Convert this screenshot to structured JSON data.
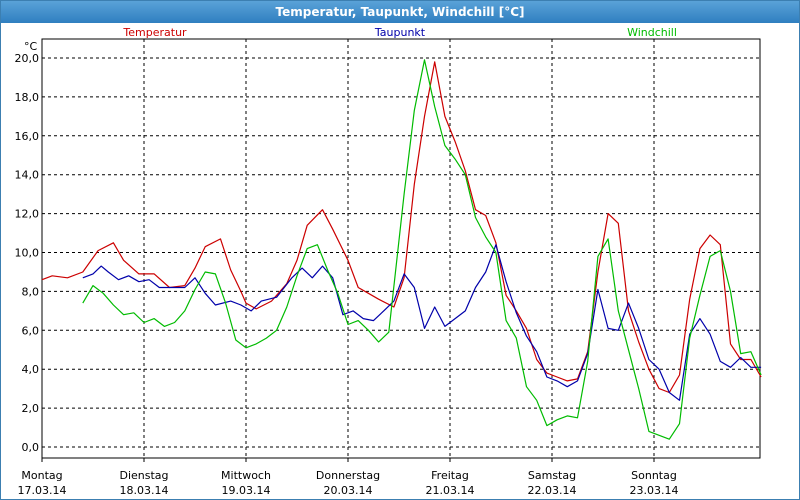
{
  "window": {
    "title": "Temperatur, Taupunkt, Windchill [°C]"
  },
  "chart_data": {
    "type": "line",
    "title": "Temperatur, Taupunkt, Windchill [°C]",
    "unit_label": "°C",
    "ylim": [
      0,
      20
    ],
    "y_ticks": [
      "0,0",
      "2,0",
      "4,0",
      "6,0",
      "8,0",
      "10,0",
      "12,0",
      "14,0",
      "16,0",
      "18,0",
      "20,0"
    ],
    "xlim": [
      0,
      7.1
    ],
    "x_ticks": [
      {
        "day": "Montag",
        "date": "17.03.14"
      },
      {
        "day": "Dienstag",
        "date": "18.03.14"
      },
      {
        "day": "Mittwoch",
        "date": "19.03.14"
      },
      {
        "day": "Donnerstag",
        "date": "20.03.14"
      },
      {
        "day": "Freitag",
        "date": "21.03.14"
      },
      {
        "day": "Samstag",
        "date": "22.03.14"
      },
      {
        "day": "Sonntag",
        "date": "23.03.14"
      }
    ],
    "grid": true,
    "legend_position": "top",
    "series": [
      {
        "name": "Temperatur",
        "color": "#cc0000",
        "x": [
          0,
          0.1,
          0.25,
          0.4,
          0.55,
          0.7,
          0.8,
          0.95,
          1.1,
          1.25,
          1.4,
          1.5,
          1.6,
          1.75,
          1.85,
          1.95,
          2.0,
          2.1,
          2.25,
          2.4,
          2.5,
          2.6,
          2.75,
          2.85,
          3.0,
          3.1,
          3.2,
          3.3,
          3.45,
          3.55,
          3.65,
          3.75,
          3.85,
          3.95,
          4.05,
          4.15,
          4.25,
          4.35,
          4.45,
          4.55,
          4.65,
          4.75,
          4.85,
          4.95,
          5.05,
          5.15,
          5.25,
          5.35,
          5.45,
          5.55,
          5.65,
          5.75,
          5.85,
          5.95,
          6.05,
          6.15,
          6.25,
          6.35,
          6.45,
          6.55,
          6.65,
          6.75,
          6.85,
          6.95,
          7.05
        ],
        "values": [
          8.6,
          8.8,
          8.7,
          9.0,
          10.1,
          10.5,
          9.6,
          8.9,
          8.9,
          8.2,
          8.3,
          9.2,
          10.3,
          10.7,
          9.1,
          8.0,
          7.4,
          7.1,
          7.5,
          8.4,
          9.6,
          11.4,
          12.2,
          11.2,
          9.6,
          8.2,
          7.9,
          7.6,
          7.2,
          8.7,
          13.5,
          17.0,
          19.8,
          17.0,
          15.7,
          14.2,
          12.2,
          11.9,
          10.5,
          7.8,
          7.0,
          6.1,
          4.5,
          3.8,
          3.6,
          3.4,
          3.5,
          4.9,
          9.0,
          12.0,
          11.5,
          7.0,
          5.4,
          4.0,
          3.0,
          2.8,
          3.7,
          7.6,
          10.2,
          10.9,
          10.4,
          5.3,
          4.5,
          4.5,
          3.6
        ]
      },
      {
        "name": "Taupunkt",
        "color": "#0000aa",
        "x": [
          0.4,
          0.5,
          0.58,
          0.65,
          0.75,
          0.85,
          0.95,
          1.05,
          1.15,
          1.3,
          1.4,
          1.5,
          1.6,
          1.7,
          1.85,
          1.95,
          2.05,
          2.15,
          2.3,
          2.45,
          2.55,
          2.65,
          2.75,
          2.85,
          2.95,
          3.05,
          3.15,
          3.25,
          3.35,
          3.45,
          3.55,
          3.65,
          3.75,
          3.85,
          3.95,
          4.05,
          4.15,
          4.25,
          4.35,
          4.45,
          4.55,
          4.65,
          4.75,
          4.85,
          4.95,
          5.05,
          5.15,
          5.25,
          5.35,
          5.45,
          5.55,
          5.65,
          5.75,
          5.85,
          5.95,
          6.05,
          6.15,
          6.25,
          6.35,
          6.45,
          6.55,
          6.65,
          6.75,
          6.85,
          6.95,
          7.05
        ],
        "values": [
          8.7,
          8.9,
          9.3,
          9.0,
          8.6,
          8.8,
          8.5,
          8.6,
          8.2,
          8.2,
          8.2,
          8.7,
          7.9,
          7.3,
          7.5,
          7.3,
          7.0,
          7.5,
          7.7,
          8.7,
          9.2,
          8.7,
          9.3,
          8.7,
          6.8,
          7.0,
          6.6,
          6.5,
          7.0,
          7.5,
          8.9,
          8.2,
          6.1,
          7.2,
          6.2,
          6.6,
          7.0,
          8.2,
          9.0,
          10.4,
          8.5,
          6.9,
          5.7,
          4.9,
          3.6,
          3.4,
          3.1,
          3.4,
          4.8,
          8.1,
          6.1,
          6.0,
          7.4,
          6.1,
          4.5,
          4.0,
          2.8,
          2.4,
          5.8,
          6.6,
          5.8,
          4.4,
          4.1,
          4.6,
          4.1,
          4.1
        ]
      },
      {
        "name": "Windchill",
        "color": "#00bb00",
        "x": [
          0.4,
          0.5,
          0.6,
          0.7,
          0.8,
          0.9,
          1.0,
          1.1,
          1.2,
          1.3,
          1.4,
          1.5,
          1.6,
          1.7,
          1.8,
          1.9,
          2.0,
          2.1,
          2.2,
          2.3,
          2.4,
          2.5,
          2.6,
          2.7,
          2.8,
          2.9,
          3.0,
          3.1,
          3.2,
          3.3,
          3.4,
          3.55,
          3.65,
          3.75,
          3.85,
          3.95,
          4.05,
          4.15,
          4.25,
          4.35,
          4.45,
          4.55,
          4.65,
          4.75,
          4.85,
          4.95,
          5.05,
          5.15,
          5.25,
          5.35,
          5.45,
          5.55,
          5.65,
          5.75,
          5.85,
          5.95,
          6.05,
          6.15,
          6.25,
          6.35,
          6.45,
          6.55,
          6.65,
          6.75,
          6.85,
          6.95,
          7.05
        ],
        "values": [
          7.4,
          8.3,
          7.9,
          7.3,
          6.8,
          6.9,
          6.4,
          6.6,
          6.2,
          6.4,
          7.0,
          8.1,
          9.0,
          8.9,
          7.4,
          5.5,
          5.1,
          5.3,
          5.6,
          6.0,
          7.2,
          8.8,
          10.2,
          10.4,
          9.1,
          7.9,
          6.3,
          6.5,
          6.0,
          5.4,
          5.9,
          13.0,
          17.3,
          19.9,
          17.5,
          15.5,
          14.8,
          14.0,
          11.8,
          10.8,
          10.0,
          6.5,
          5.6,
          3.1,
          2.4,
          1.1,
          1.4,
          1.6,
          1.5,
          4.4,
          9.8,
          10.7,
          7.0,
          5.0,
          3.0,
          0.8,
          0.6,
          0.4,
          1.2,
          5.6,
          7.8,
          9.8,
          10.1,
          8.0,
          4.8,
          4.9,
          3.7
        ]
      }
    ]
  }
}
